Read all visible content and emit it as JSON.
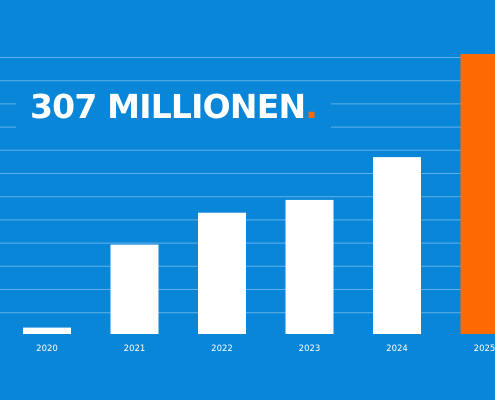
{
  "headline": {
    "text": "307 MILLIONEN",
    "dot": "."
  },
  "colors": {
    "background": "#0a86d8",
    "grid": "#5fb0ea",
    "bar": "#ffffff",
    "highlight": "#ff6a00",
    "tick_label": "#ffffff"
  },
  "chart_data": {
    "type": "bar",
    "title": "307 MILLIONEN",
    "xlabel": "",
    "ylabel": "",
    "categories": [
      "2020",
      "2021",
      "2022",
      "2023",
      "2024",
      "2025"
    ],
    "values": [
      7,
      98,
      133,
      147,
      194,
      307
    ],
    "ylim": [
      0,
      307
    ],
    "grid": true,
    "highlight_category": "2025"
  }
}
